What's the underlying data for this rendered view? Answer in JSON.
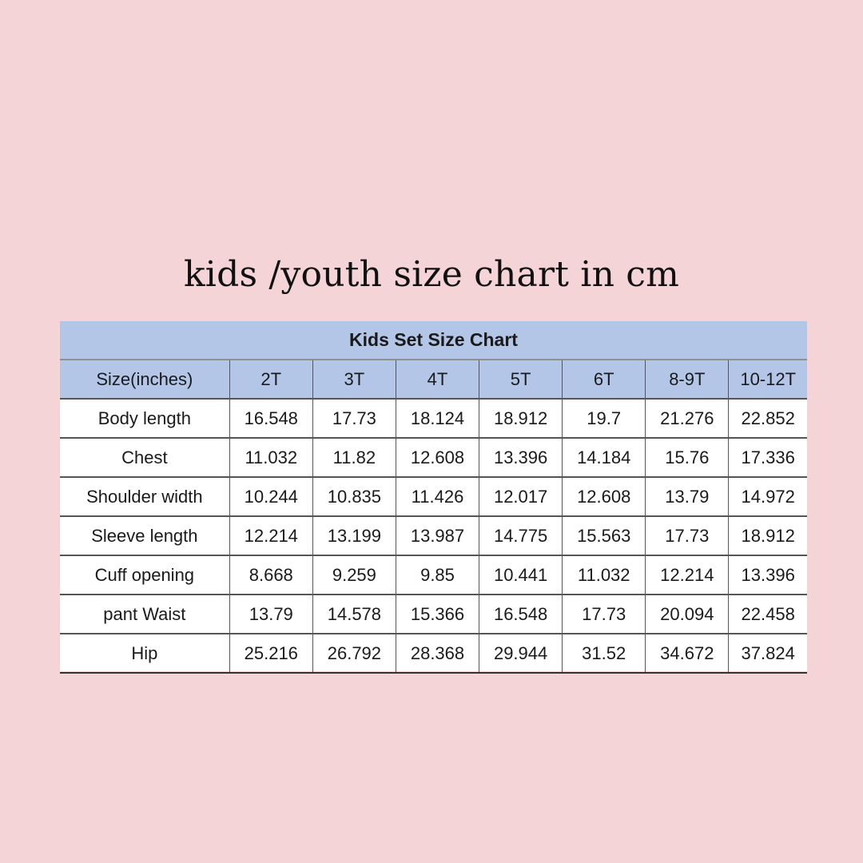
{
  "page_title": "kids /youth size chart in cm",
  "table": {
    "title": "Kids Set Size Chart",
    "header": [
      "Size(inches)",
      "2T",
      "3T",
      "4T",
      "5T",
      "6T",
      "8-9T",
      "10-12T"
    ],
    "rows": [
      [
        "Body length",
        "16.548",
        "17.73",
        "18.124",
        "18.912",
        "19.7",
        "21.276",
        "22.852"
      ],
      [
        "Chest",
        "11.032",
        "11.82",
        "12.608",
        "13.396",
        "14.184",
        "15.76",
        "17.336"
      ],
      [
        "Shoulder width",
        "10.244",
        "10.835",
        "11.426",
        "12.017",
        "12.608",
        "13.79",
        "14.972"
      ],
      [
        "Sleeve length",
        "12.214",
        "13.199",
        "13.987",
        "14.775",
        "15.563",
        "17.73",
        "18.912"
      ],
      [
        "Cuff opening",
        "8.668",
        "9.259",
        "9.85",
        "10.441",
        "11.032",
        "12.214",
        "13.396"
      ],
      [
        "pant Waist",
        "13.79",
        "14.578",
        "15.366",
        "16.548",
        "17.73",
        "20.094",
        "22.458"
      ],
      [
        "Hip",
        "25.216",
        "26.792",
        "28.368",
        "29.944",
        "31.52",
        "34.672",
        "37.824"
      ]
    ]
  },
  "colors": {
    "background": "#f4d4d6",
    "header_fill": "#b4c6e8"
  }
}
